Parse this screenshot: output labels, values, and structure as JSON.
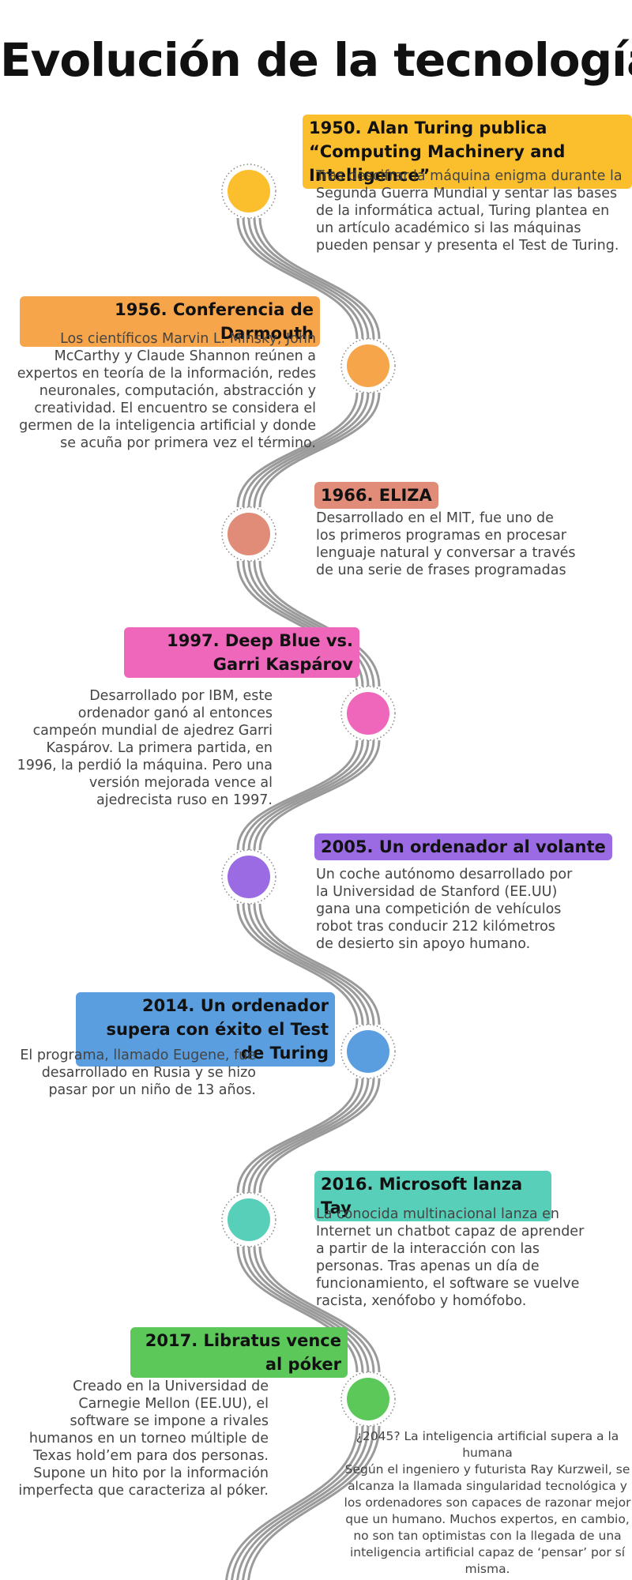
{
  "title": "Evolución de la tecnología",
  "events": [
    {
      "heading": "1950. Alan Turing publica “Computing Machinery and Intelligence”",
      "color": "#fbbf2e",
      "text": "Tras descifrar la máquina enigma durante la Segunda Guerra Mundial y sentar las bases de la informática actual, Turing plantea en un artículo académico si las máquinas pueden pensar y presenta el Test de Turing."
    },
    {
      "heading": "1956. Conferencia de Darmouth",
      "color": "#f7a54a",
      "text": "Los científicos Marvin L. Minsky, John McCarthy y Claude Shannon reúnen a expertos en teoría de la información, redes neuronales, computación, abstracción y creatividad. El encuentro se considera el germen de la inteligencia artificial y donde se acuña por primera vez el término."
    },
    {
      "heading": "1966. ELIZA",
      "color": "#e08c78",
      "text": "Desarrollado en el MIT, fue uno de los primeros programas en procesar lenguaje natural y conversar a través de una serie de frases programadas"
    },
    {
      "heading": "1997. Deep Blue vs. Garri Kaspárov",
      "color": "#ef67bb",
      "text": "Desarrollado por IBM, este ordenador ganó al entonces campeón mundial de ajedrez Garri Kaspárov. La primera partida, en 1996, la perdió la máquina. Pero una versión mejorada vence al ajedrecista ruso en 1997."
    },
    {
      "heading": "2005. Un ordenador al volante",
      "color": "#9b6be3",
      "text": "Un coche autónomo desarrollado por la Universidad de Stanford (EE.UU) gana una competición de vehículos robot tras conducir 212 kilómetros de desierto sin apoyo humano."
    },
    {
      "heading": "2014. Un ordenador supera con éxito el Test de Turing",
      "color": "#5a9ee0",
      "text": "El programa, llamado Eugene, fue desarrollado en Rusia y se hizo pasar por un niño de 13 años."
    },
    {
      "heading": "2016. Microsoft lanza Tay",
      "color": "#57cfb9",
      "text": "La conocida multinacional lanza en Internet un chatbot capaz de aprender a partir de la interacción con las personas. Tras apenas un día de funcionamiento, el software se vuelve racista, xenófobo y homófobo."
    },
    {
      "heading": "2017. Libratus vence al póker",
      "color": "#5cc85a",
      "text": "Creado en la Universidad de Carnegie Mellon (EE.UU), el software se impone a rivales humanos en un torneo múltiple de Texas hold’em para dos personas. Supone un hito por la información imperfecta que caracteriza al póker."
    }
  ],
  "future": {
    "heading": "¿2045? La inteligencia artificial supera a la humana",
    "text": "Según el ingeniero y futurista Ray Kurzweil, se alcanza la llamada singularidad tecnológica y los ordenadores son capaces de razonar mejor que un humano. Muchos expertos, en cambio, no son tan optimistas con la llegada de una inteligencia artificial capaz de ‘pensar’ por sí misma."
  }
}
